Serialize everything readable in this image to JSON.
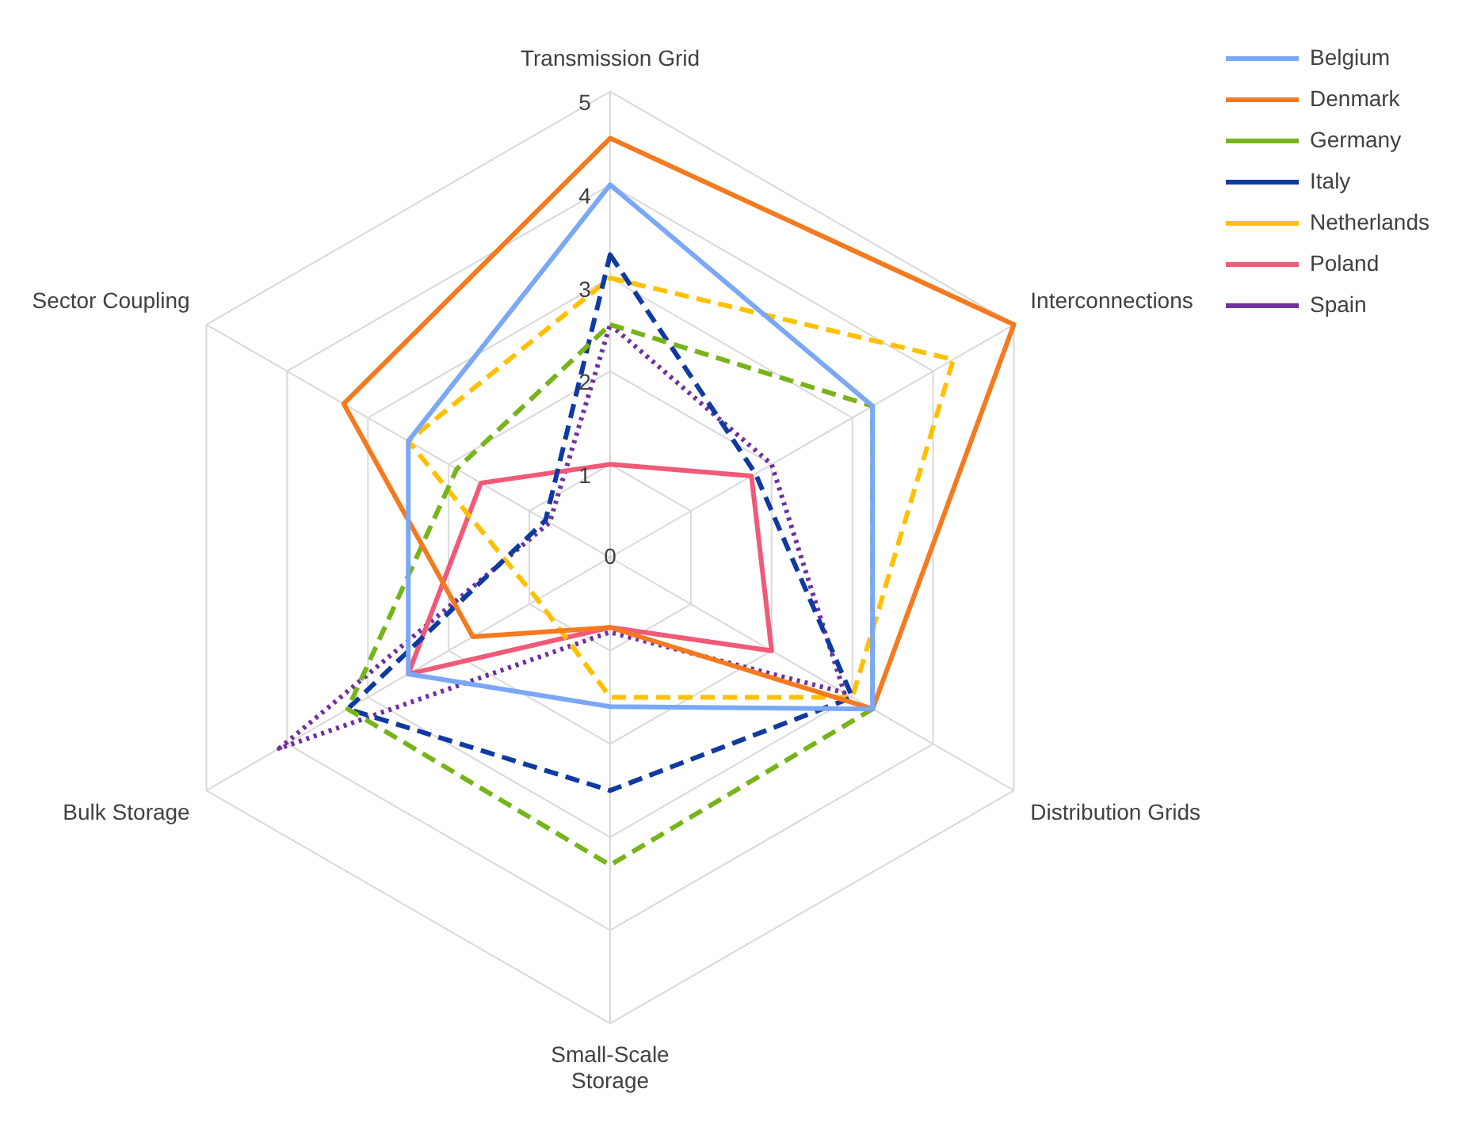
{
  "chart_data": {
    "type": "radar",
    "categories": [
      "Transmission Grid",
      "Interconnections",
      "Distribution Grids",
      "Small-Scale Storage",
      "Bulk Storage",
      "Sector Coupling"
    ],
    "ylim": [
      0,
      5
    ],
    "yticks": [
      0,
      1,
      2,
      3,
      4,
      5
    ],
    "grid": true,
    "legend": "top right",
    "marker": "none",
    "series": [
      {
        "name": "Belgium",
        "color": "#7ba7f7",
        "line_style": "solid",
        "values": [
          4,
          3.25,
          3.25,
          1.6,
          2.5,
          2.5
        ]
      },
      {
        "name": "Denmark",
        "color": "#f57a1f",
        "line_style": "solid",
        "values": [
          4.5,
          5,
          3.25,
          0.75,
          1.7,
          3.3
        ]
      },
      {
        "name": "Germany",
        "color": "#77b41a",
        "line_style": "dashed",
        "values": [
          2.5,
          3.25,
          3.25,
          3.3,
          3.25,
          1.9
        ]
      },
      {
        "name": "Italy",
        "color": "#0f3aa0",
        "line_style": "dashed",
        "values": [
          3.25,
          1.8,
          3,
          2.5,
          3.25,
          0.8
        ]
      },
      {
        "name": "Netherlands",
        "color": "#ffc000",
        "line_style": "dashed",
        "values": [
          3,
          4.25,
          3,
          1.5,
          0.9,
          2.5
        ]
      },
      {
        "name": "Poland",
        "color": "#f05a78",
        "line_style": "solid",
        "values": [
          1,
          1.75,
          2,
          0.75,
          2.5,
          1.6
        ]
      },
      {
        "name": "Spain",
        "color": "#7030a0",
        "line_style": "dotted",
        "values": [
          2.5,
          2,
          2.9,
          0.8,
          4.1,
          0.75
        ]
      }
    ]
  }
}
